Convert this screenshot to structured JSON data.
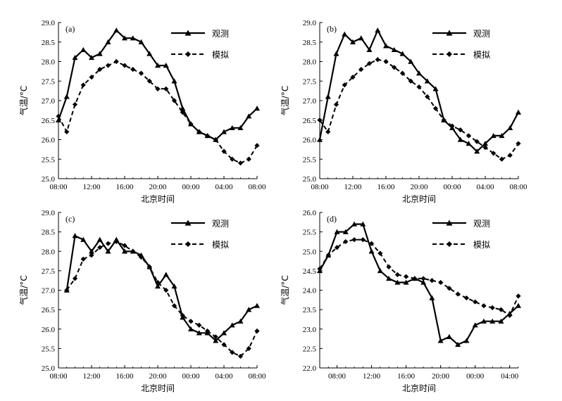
{
  "figure": {
    "legend_observed": "观测",
    "legend_simulated": "模拟"
  },
  "chart_data": [
    {
      "type": "line",
      "panel_label": "(a)",
      "xlabel": "北京时间",
      "ylabel": "气温/°C",
      "ylim": [
        25.0,
        29.0
      ],
      "yticks": [
        "25.0",
        "25.5",
        "26.0",
        "26.5",
        "27.0",
        "27.5",
        "28.0",
        "28.5",
        "29.0"
      ],
      "xlim": [
        8,
        32
      ],
      "xticks": [
        {
          "x": 8,
          "label": "08:00"
        },
        {
          "x": 12,
          "label": "12:00"
        },
        {
          "x": 16,
          "label": "16:00"
        },
        {
          "x": 20,
          "label": "20:00"
        },
        {
          "x": 24,
          "label": "00:00"
        },
        {
          "x": 28,
          "label": "04:00"
        },
        {
          "x": 32,
          "label": "08:00"
        }
      ],
      "x": [
        8,
        9,
        10,
        11,
        12,
        13,
        14,
        15,
        16,
        17,
        18,
        19,
        20,
        21,
        22,
        23,
        24,
        25,
        26,
        27,
        28,
        29,
        30,
        31,
        32
      ],
      "series": [
        {
          "name": "观测",
          "values": [
            26.5,
            27.1,
            28.1,
            28.3,
            28.1,
            28.2,
            28.5,
            28.8,
            28.6,
            28.6,
            28.5,
            28.2,
            27.9,
            27.9,
            27.5,
            26.8,
            26.4,
            26.2,
            26.1,
            26.0,
            26.2,
            26.3,
            26.3,
            26.6,
            26.8
          ]
        },
        {
          "name": "模拟",
          "values": [
            26.6,
            26.2,
            26.9,
            27.4,
            27.6,
            27.8,
            27.9,
            28.0,
            27.9,
            27.8,
            27.7,
            27.5,
            27.3,
            27.3,
            27.0,
            26.7,
            26.4,
            26.2,
            26.1,
            26.0,
            25.7,
            25.5,
            25.4,
            25.5,
            25.85
          ]
        }
      ]
    },
    {
      "type": "line",
      "panel_label": "(b)",
      "xlabel": "北京时间",
      "ylabel": "气温/°C",
      "ylim": [
        25.0,
        29.0
      ],
      "yticks": [
        "25.0",
        "25.5",
        "26.0",
        "26.5",
        "27.0",
        "27.5",
        "28.0",
        "28.5",
        "29.0"
      ],
      "xlim": [
        8,
        32
      ],
      "xticks": [
        {
          "x": 8,
          "label": "08:00"
        },
        {
          "x": 12,
          "label": "12:00"
        },
        {
          "x": 16,
          "label": "16:00"
        },
        {
          "x": 20,
          "label": "20:00"
        },
        {
          "x": 24,
          "label": "00:00"
        },
        {
          "x": 28,
          "label": "04:00"
        },
        {
          "x": 32,
          "label": "08:00"
        }
      ],
      "x": [
        8,
        9,
        10,
        11,
        12,
        13,
        14,
        15,
        16,
        17,
        18,
        19,
        20,
        21,
        22,
        23,
        24,
        25,
        26,
        27,
        28,
        29,
        30,
        31,
        32
      ],
      "series": [
        {
          "name": "观测",
          "values": [
            26.0,
            27.1,
            28.2,
            28.7,
            28.5,
            28.6,
            28.3,
            28.8,
            28.4,
            28.3,
            28.2,
            28.0,
            27.7,
            27.5,
            27.3,
            26.5,
            26.3,
            26.0,
            25.9,
            25.7,
            25.9,
            26.1,
            26.1,
            26.3,
            26.7
          ]
        },
        {
          "name": "模拟",
          "values": [
            26.5,
            26.2,
            26.9,
            27.4,
            27.6,
            27.8,
            27.95,
            28.05,
            28.0,
            27.85,
            27.7,
            27.5,
            27.35,
            27.1,
            26.8,
            26.5,
            26.35,
            26.25,
            26.1,
            25.95,
            25.8,
            25.65,
            25.5,
            25.6,
            25.9
          ]
        }
      ]
    },
    {
      "type": "line",
      "panel_label": "(c)",
      "xlabel": "北京时间",
      "ylabel": "气温/°C",
      "ylim": [
        25.0,
        29.0
      ],
      "yticks": [
        "25.0",
        "25.5",
        "26.0",
        "26.5",
        "27.0",
        "27.5",
        "28.0",
        "28.5",
        "29.0"
      ],
      "xlim": [
        8,
        32
      ],
      "xticks": [
        {
          "x": 8,
          "label": "08:00"
        },
        {
          "x": 12,
          "label": "12:00"
        },
        {
          "x": 16,
          "label": "16:00"
        },
        {
          "x": 20,
          "label": "20:00"
        },
        {
          "x": 24,
          "label": "00:00"
        },
        {
          "x": 28,
          "label": "04:00"
        },
        {
          "x": 32,
          "label": "08:00"
        }
      ],
      "x": [
        9,
        10,
        11,
        12,
        13,
        14,
        15,
        16,
        17,
        18,
        19,
        20,
        21,
        22,
        23,
        24,
        25,
        26,
        27,
        28,
        29,
        30,
        31,
        32
      ],
      "series": [
        {
          "name": "观测",
          "values": [
            27.0,
            28.4,
            28.3,
            28.0,
            28.3,
            28.0,
            28.3,
            28.0,
            28.0,
            27.9,
            27.6,
            27.1,
            27.4,
            27.1,
            26.3,
            26.0,
            25.9,
            25.9,
            25.7,
            25.9,
            26.1,
            26.2,
            26.5,
            26.6
          ]
        },
        {
          "name": "模拟",
          "values": [
            27.0,
            27.3,
            27.8,
            27.9,
            28.1,
            28.2,
            28.25,
            28.15,
            28.0,
            27.85,
            27.6,
            27.2,
            27.0,
            26.6,
            26.35,
            26.2,
            26.1,
            25.95,
            25.8,
            25.6,
            25.4,
            25.3,
            25.5,
            25.95
          ]
        }
      ]
    },
    {
      "type": "line",
      "panel_label": "(d)",
      "xlabel": "北京时间",
      "ylabel": "气温/°C",
      "ylim": [
        22.0,
        26.0
      ],
      "yticks": [
        "22.0",
        "22.5",
        "23.0",
        "23.5",
        "24.0",
        "24.5",
        "25.0",
        "25.5",
        "26.0"
      ],
      "xlim": [
        6,
        29
      ],
      "xticks": [
        {
          "x": 8,
          "label": "08:00"
        },
        {
          "x": 12,
          "label": "12:00"
        },
        {
          "x": 16,
          "label": "16:00"
        },
        {
          "x": 20,
          "label": "20:00"
        },
        {
          "x": 24,
          "label": "00:00"
        },
        {
          "x": 28,
          "label": "04:00"
        }
      ],
      "x": [
        6,
        7,
        8,
        9,
        10,
        11,
        12,
        13,
        14,
        15,
        16,
        17,
        18,
        19,
        20,
        21,
        22,
        23,
        24,
        25,
        26,
        27,
        28,
        29
      ],
      "series": [
        {
          "name": "观测",
          "values": [
            24.5,
            24.9,
            25.5,
            25.5,
            25.7,
            25.7,
            25.0,
            24.5,
            24.3,
            24.2,
            24.2,
            24.3,
            24.2,
            23.8,
            22.7,
            22.8,
            22.6,
            22.7,
            23.1,
            23.2,
            23.2,
            23.2,
            23.4,
            23.6
          ]
        },
        {
          "name": "模拟",
          "values": [
            24.55,
            24.9,
            25.1,
            25.25,
            25.3,
            25.3,
            25.2,
            24.95,
            24.6,
            24.4,
            24.35,
            24.3,
            24.3,
            24.25,
            24.2,
            24.05,
            23.9,
            23.8,
            23.7,
            23.6,
            23.55,
            23.5,
            23.35,
            23.85
          ]
        }
      ]
    }
  ]
}
